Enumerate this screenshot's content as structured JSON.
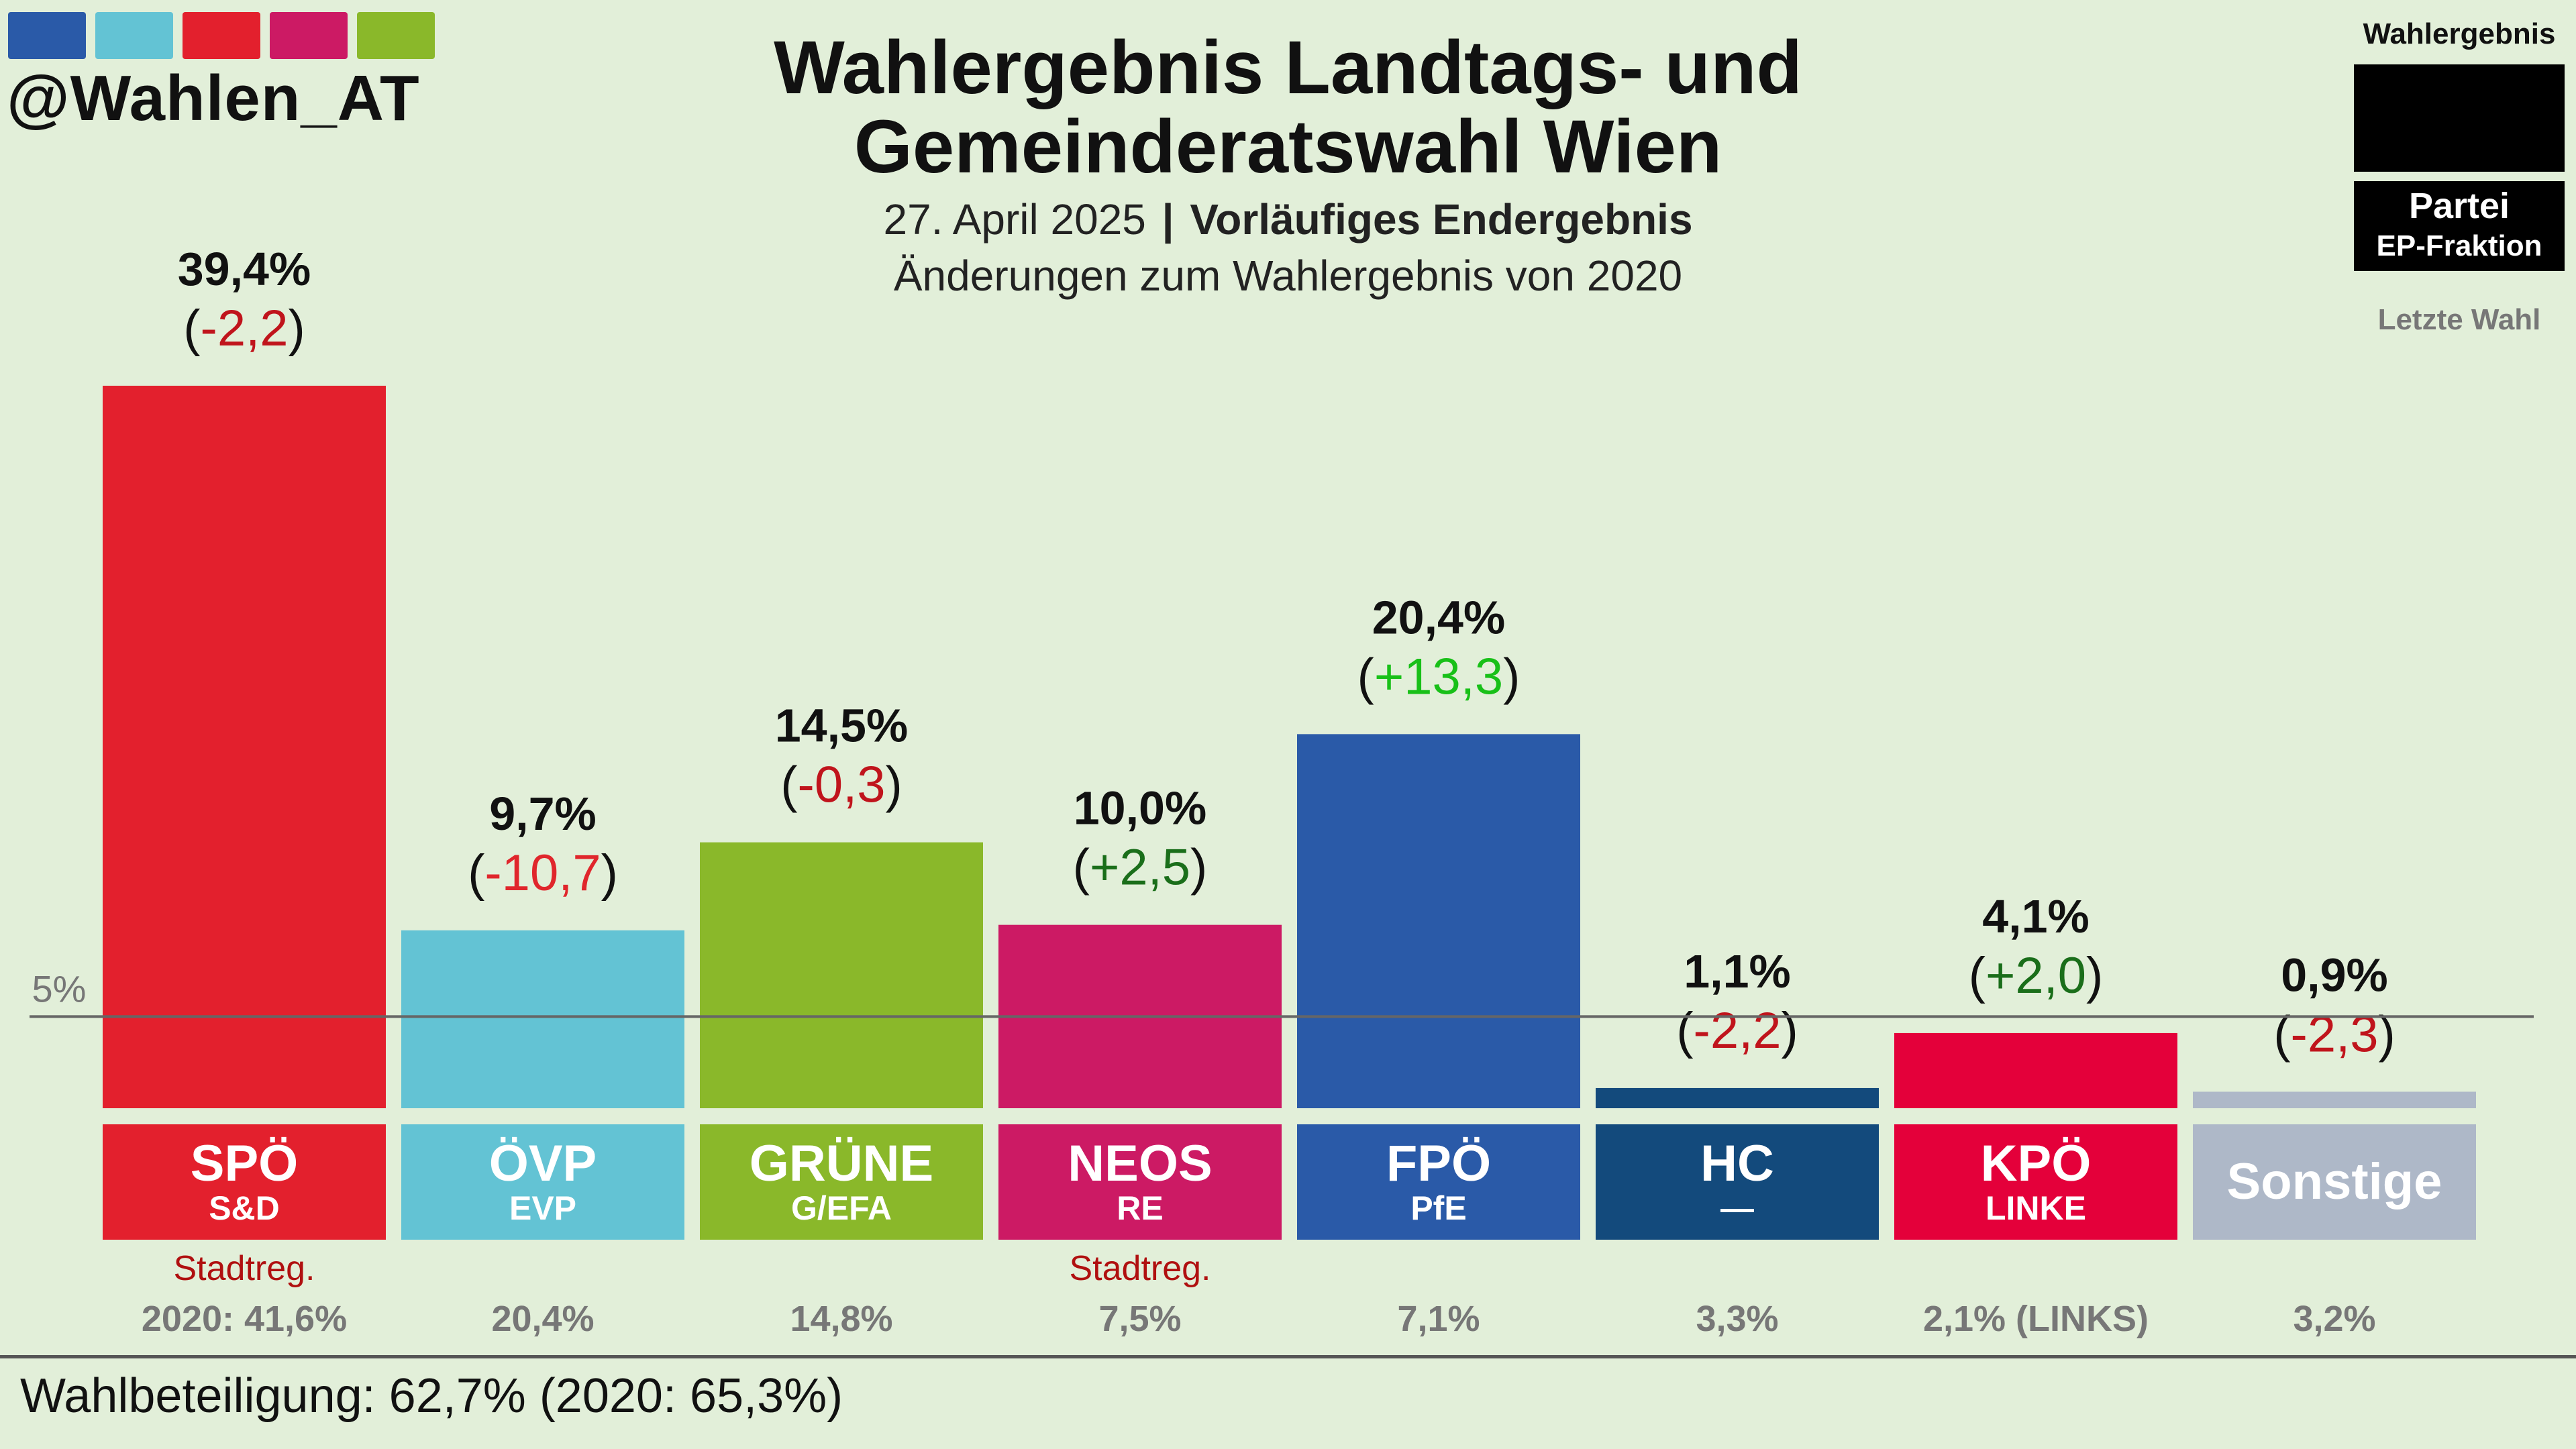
{
  "brand": {
    "handle": "@Wahlen_AT",
    "swatch_colors": [
      "#2a5aa8",
      "#63c3d4",
      "#e3202d",
      "#cc1a64",
      "#8ab82a"
    ]
  },
  "header": {
    "title_line1": "Wahlergebnis Landtags- und",
    "title_line2": "Gemeinderatswahl Wien",
    "date": "27. April 2025",
    "separator": "|",
    "status": "Vorläufiges Endergebnis",
    "comparison": "Änderungen zum Wahlergebnis von 2020"
  },
  "legend": {
    "result_label": "Wahlergebnis",
    "party_label": "Partei",
    "faction_label": "EP-Fraktion",
    "last_label": "Letzte Wahl"
  },
  "chart_data": {
    "type": "bar",
    "ylim": [
      0,
      39.4
    ],
    "reference_line": {
      "value": 5,
      "label": "5%"
    },
    "categories": [
      "SPÖ",
      "ÖVP",
      "GRÜNE",
      "NEOS",
      "FPÖ",
      "HC",
      "KPÖ",
      "Sonstige"
    ],
    "values": [
      39.4,
      9.7,
      14.5,
      10.0,
      20.4,
      1.1,
      4.1,
      0.9
    ],
    "value_labels": [
      "39,4%",
      "9,7%",
      "14,5%",
      "10,0%",
      "20,4%",
      "1,1%",
      "4,1%",
      "0,9%"
    ],
    "changes": [
      -2.2,
      -10.7,
      -0.3,
      2.5,
      13.3,
      -2.2,
      2.0,
      -2.3
    ],
    "change_labels": [
      "-2,2",
      "-10,7",
      "-0,3",
      "+2,5",
      "+13,3",
      "-2,2",
      "+2,0",
      "-2,3"
    ],
    "change_colors": [
      "#c0141c",
      "#e0262c",
      "#c0141c",
      "#1a6e1a",
      "#18c018",
      "#c0141c",
      "#1a6e1a",
      "#c0141c"
    ],
    "factions": [
      "S&D",
      "EVP",
      "G/EFA",
      "RE",
      "PfE",
      "—",
      "LINKE",
      ""
    ],
    "colors": [
      "#e3202d",
      "#63c3d4",
      "#8ab82a",
      "#cc1a64",
      "#2a5aa8",
      "#134a7c",
      "#e4003a",
      "#aeb8c8"
    ],
    "notes": [
      "Stadtreg.",
      "",
      "",
      "Stadtreg.",
      "",
      "",
      "",
      ""
    ],
    "last_election": [
      "2020: 41,6%",
      "20,4%",
      "14,8%",
      "7,5%",
      "7,1%",
      "3,3%",
      "2,1% (LINKS)",
      "3,2%"
    ]
  },
  "footer": {
    "turnout": "Wahlbeteiligung: 62,7% (2020: 65,3%)"
  }
}
